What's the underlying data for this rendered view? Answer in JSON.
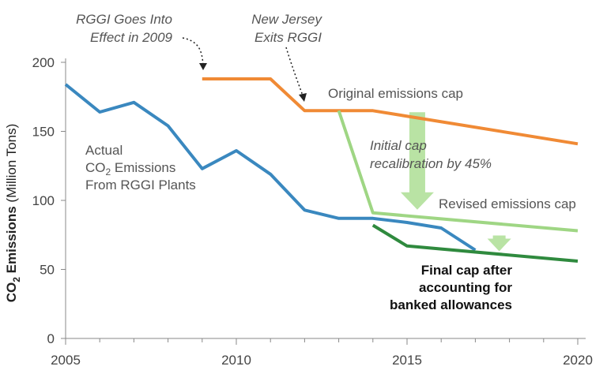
{
  "chart_data": {
    "type": "line",
    "title": "",
    "xlabel": "",
    "ylabel": {
      "prefix": "CO",
      "subscript": "2",
      "bold_rest": " Emissions",
      "unit": " (Million Tons)"
    },
    "xlim": [
      2005,
      2020
    ],
    "ylim": [
      0,
      200
    ],
    "x_ticks": [
      2005,
      2010,
      2015,
      2020
    ],
    "x_tick_labels": [
      "2005",
      "2010",
      "2015",
      "2020"
    ],
    "y_ticks": [
      0,
      50,
      100,
      150,
      200
    ],
    "y_tick_labels": [
      "0",
      "50",
      "100",
      "150",
      "200"
    ],
    "grid": false,
    "series": [
      {
        "key": "actual",
        "color": "#3a88bf",
        "points": [
          [
            2005,
            184
          ],
          [
            2006,
            164
          ],
          [
            2007,
            171
          ],
          [
            2008,
            154
          ],
          [
            2009,
            123
          ],
          [
            2010,
            136
          ],
          [
            2011,
            119
          ],
          [
            2012,
            93
          ],
          [
            2013,
            87
          ],
          [
            2014,
            87
          ],
          [
            2015,
            84
          ],
          [
            2016,
            80
          ],
          [
            2017,
            64
          ]
        ]
      },
      {
        "key": "original_cap",
        "color": "#f08a35",
        "points": [
          [
            2009,
            188
          ],
          [
            2011,
            188
          ],
          [
            2012,
            165
          ],
          [
            2014,
            165
          ],
          [
            2020,
            141
          ]
        ]
      },
      {
        "key": "revised_cap",
        "color": "#9fd684",
        "points": [
          [
            2013,
            165
          ],
          [
            2014,
            91
          ],
          [
            2020,
            78
          ]
        ]
      },
      {
        "key": "final_cap",
        "color": "#2f8a3e",
        "points": [
          [
            2014,
            82
          ],
          [
            2015,
            67
          ],
          [
            2020,
            56
          ]
        ]
      }
    ],
    "annotations": {
      "actual_emissions": {
        "line1": "Actual",
        "line2_prefix": "CO",
        "line2_sub": "2",
        "line2_rest": " Emissions",
        "line3": "From RGGI Plants"
      },
      "rggi_effect": [
        "RGGI Goes Into",
        "Effect in 2009"
      ],
      "nj_exits": [
        "New Jersey",
        "Exits RGGI"
      ],
      "original_cap_label": "Original emissions cap",
      "recalibration": [
        "Initial cap",
        "recalibration by 45%"
      ],
      "revised_cap_label": "Revised emissions cap",
      "final_cap_label": [
        "Final cap after",
        "accounting for",
        "banked allowances"
      ]
    },
    "arrow_color": "#b9e3a4"
  }
}
